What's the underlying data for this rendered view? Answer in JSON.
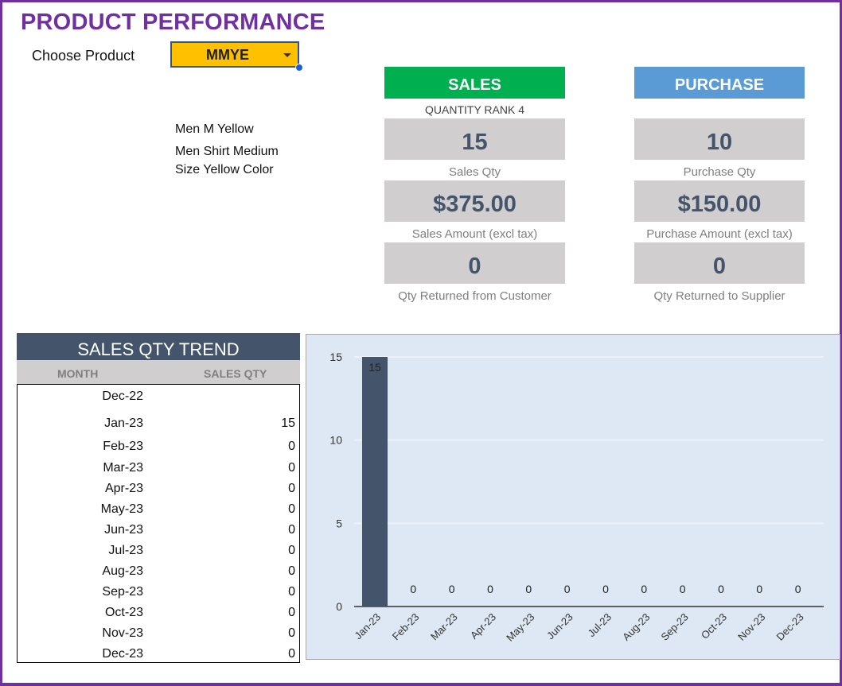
{
  "title": "PRODUCT PERFORMANCE",
  "selector": {
    "label": "Choose Product",
    "value": "MMYE"
  },
  "product": {
    "name": "Men M Yellow",
    "description_line1": "Men Shirt Medium",
    "description_line2": "Size Yellow Color"
  },
  "sales": {
    "header": "SALES",
    "rank_label": "QUANTITY RANK 4",
    "qty": "15",
    "qty_label": "Sales Qty",
    "amount": "$375.00",
    "amount_label": "Sales Amount (excl tax)",
    "returned": "0",
    "returned_label": "Qty Returned from Customer",
    "color": "#00b050"
  },
  "purchase": {
    "header": "PURCHASE",
    "qty": "10",
    "qty_label": "Purchase Qty",
    "amount": "$150.00",
    "amount_label": "Purchase Amount (excl tax)",
    "returned": "0",
    "returned_label": "Qty Returned to Supplier",
    "color": "#5b9bd5"
  },
  "trend": {
    "title": "SALES QTY TREND",
    "col_month": "MONTH",
    "col_qty": "SALES QTY",
    "rows": [
      {
        "month": "Dec-22",
        "qty": ""
      },
      {
        "month": "Jan-23",
        "qty": "15"
      },
      {
        "month": "Feb-23",
        "qty": "0"
      },
      {
        "month": "Mar-23",
        "qty": "0"
      },
      {
        "month": "Apr-23",
        "qty": "0"
      },
      {
        "month": "May-23",
        "qty": "0"
      },
      {
        "month": "Jun-23",
        "qty": "0"
      },
      {
        "month": "Jul-23",
        "qty": "0"
      },
      {
        "month": "Aug-23",
        "qty": "0"
      },
      {
        "month": "Sep-23",
        "qty": "0"
      },
      {
        "month": "Oct-23",
        "qty": "0"
      },
      {
        "month": "Nov-23",
        "qty": "0"
      },
      {
        "month": "Dec-23",
        "qty": "0"
      }
    ]
  },
  "chart_data": {
    "type": "bar",
    "categories": [
      "Jan-23",
      "Feb-23",
      "Mar-23",
      "Apr-23",
      "May-23",
      "Jun-23",
      "Jul-23",
      "Aug-23",
      "Sep-23",
      "Oct-23",
      "Nov-23",
      "Dec-23"
    ],
    "values": [
      15,
      0,
      0,
      0,
      0,
      0,
      0,
      0,
      0,
      0,
      0,
      0
    ],
    "ylim": [
      0,
      15
    ],
    "yticks": [
      0,
      5,
      10,
      15
    ],
    "grid": true,
    "bar_color": "#44546a",
    "background": "#dee8f5",
    "data_labels": true
  }
}
